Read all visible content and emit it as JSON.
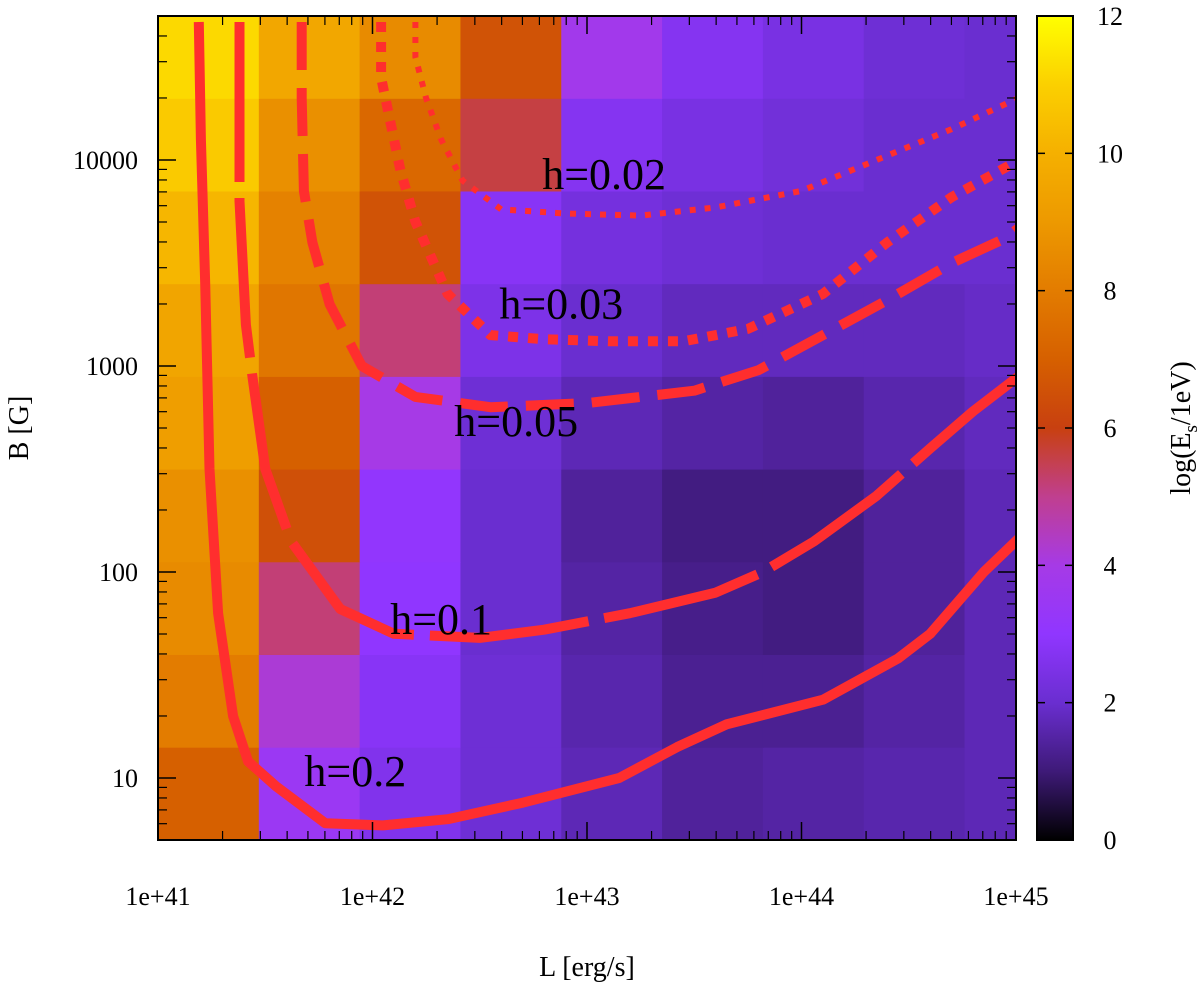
{
  "chart_data": {
    "type": "heatmap",
    "xlabel": "L [erg/s]",
    "ylabel": "B [G]",
    "xscale": "log",
    "yscale": "log",
    "xlim": [
      1e+41,
      1e+45
    ],
    "ylim": [
      5,
      50000
    ],
    "x_ticks": [
      {
        "value": 1e+41,
        "label": "1e+41"
      },
      {
        "value": 1e+42,
        "label": "1e+42"
      },
      {
        "value": 1e+43,
        "label": "1e+43"
      },
      {
        "value": 1e+44,
        "label": "1e+44"
      },
      {
        "value": 1e+45,
        "label": "1e+45"
      }
    ],
    "y_ticks": [
      {
        "value": 10,
        "label": "10"
      },
      {
        "value": 100,
        "label": "100"
      },
      {
        "value": 1000,
        "label": "1000"
      },
      {
        "value": 10000,
        "label": "10000"
      }
    ],
    "colorbar": {
      "label_main": "log(E",
      "label_sub": "s",
      "label_tail": "/1eV)",
      "min": 0,
      "max": 12,
      "ticks": [
        {
          "value": 0,
          "label": "0"
        },
        {
          "value": 2,
          "label": "2"
        },
        {
          "value": 4,
          "label": "4"
        },
        {
          "value": 6,
          "label": "6"
        },
        {
          "value": 8,
          "label": "8"
        },
        {
          "value": 10,
          "label": "10"
        },
        {
          "value": 12,
          "label": "12"
        }
      ],
      "stops": [
        {
          "v": 0,
          "color": "#000000"
        },
        {
          "v": 1,
          "color": "#3e1a78"
        },
        {
          "v": 2,
          "color": "#6a2ed0"
        },
        {
          "v": 3,
          "color": "#9036ff"
        },
        {
          "v": 4,
          "color": "#a63ae6"
        },
        {
          "v": 5,
          "color": "#c03f8f"
        },
        {
          "v": 6,
          "color": "#c84010"
        },
        {
          "v": 7,
          "color": "#d66000"
        },
        {
          "v": 8,
          "color": "#e37c00"
        },
        {
          "v": 9,
          "color": "#ed9900"
        },
        {
          "v": 10,
          "color": "#f5b000"
        },
        {
          "v": 11,
          "color": "#fbd000"
        },
        {
          "v": 12,
          "color": "#ffff00"
        }
      ]
    },
    "grid": {
      "log_x_edges": [
        41.0,
        41.47,
        41.94,
        42.41,
        42.88,
        43.35,
        43.82,
        44.29,
        44.76
      ],
      "log_y_edges": [
        0.7,
        1.15,
        1.6,
        2.05,
        2.5,
        2.95,
        3.4,
        3.85,
        4.3,
        4.7
      ],
      "rows_bottom_to_top": [
        [
          7.0,
          3.5,
          2.6,
          2.1,
          1.7,
          1.4,
          1.5,
          1.6,
          1.7
        ],
        [
          8.0,
          4.2,
          2.8,
          2.1,
          1.6,
          1.3,
          1.3,
          1.5,
          1.7
        ],
        [
          8.5,
          5.2,
          3.0,
          2.0,
          1.5,
          1.2,
          1.1,
          1.4,
          1.7
        ],
        [
          8.7,
          6.5,
          3.1,
          2.0,
          1.4,
          1.1,
          1.1,
          1.4,
          1.7
        ],
        [
          9.2,
          7.0,
          4.0,
          2.1,
          1.7,
          1.5,
          1.4,
          1.6,
          1.8
        ],
        [
          9.5,
          7.8,
          5.2,
          2.5,
          2.0,
          1.8,
          1.8,
          1.8,
          1.9
        ],
        [
          10.2,
          8.2,
          6.6,
          2.8,
          2.3,
          2.1,
          2.0,
          2.0,
          2.0
        ],
        [
          10.8,
          8.7,
          7.3,
          5.6,
          2.7,
          2.4,
          2.2,
          2.0,
          2.0
        ],
        [
          11.2,
          9.6,
          8.5,
          6.6,
          3.8,
          2.7,
          2.4,
          2.1,
          2.0
        ]
      ]
    },
    "contour_color": "#ff2e2e",
    "contours": [
      {
        "name": "h=0.2",
        "label": "h=0.2",
        "label_pos": [
          41.92,
          0.96
        ],
        "style": "solid",
        "points": [
          [
            41.19,
            4.67
          ],
          [
            41.2,
            4.1
          ],
          [
            41.22,
            3.4
          ],
          [
            41.24,
            2.5
          ],
          [
            41.28,
            1.8
          ],
          [
            41.35,
            1.3
          ],
          [
            41.42,
            1.08
          ],
          [
            41.55,
            0.96
          ],
          [
            41.78,
            0.78
          ],
          [
            42.05,
            0.77
          ],
          [
            42.35,
            0.8
          ],
          [
            42.7,
            0.88
          ],
          [
            43.15,
            1.0
          ],
          [
            43.42,
            1.15
          ],
          [
            43.65,
            1.26
          ],
          [
            44.1,
            1.38
          ],
          [
            44.45,
            1.58
          ],
          [
            44.6,
            1.7
          ],
          [
            44.85,
            2.0
          ],
          [
            45.05,
            2.2
          ]
        ]
      },
      {
        "name": "h=0.1",
        "label": "h=0.1",
        "label_pos": [
          42.32,
          1.7
        ],
        "style": "long-dash",
        "points": [
          [
            41.38,
            4.67
          ],
          [
            41.38,
            4.2
          ],
          [
            41.38,
            3.8
          ],
          [
            41.41,
            3.2
          ],
          [
            41.44,
            2.95
          ],
          [
            41.46,
            2.8
          ],
          [
            41.5,
            2.5
          ],
          [
            41.62,
            2.15
          ],
          [
            41.85,
            1.82
          ],
          [
            42.1,
            1.7
          ],
          [
            42.5,
            1.68
          ],
          [
            42.8,
            1.72
          ],
          [
            43.2,
            1.8
          ],
          [
            43.6,
            1.9
          ],
          [
            43.82,
            2.0
          ],
          [
            44.06,
            2.15
          ],
          [
            44.35,
            2.37
          ],
          [
            44.6,
            2.6
          ],
          [
            44.8,
            2.78
          ],
          [
            45.05,
            2.98
          ]
        ]
      },
      {
        "name": "h=0.05",
        "label": "h=0.05",
        "label_pos": [
          42.67,
          2.66
        ],
        "style": "dash",
        "points": [
          [
            41.67,
            4.67
          ],
          [
            41.67,
            4.3
          ],
          [
            41.68,
            3.85
          ],
          [
            41.72,
            3.6
          ],
          [
            41.8,
            3.3
          ],
          [
            41.95,
            3.0
          ],
          [
            42.2,
            2.85
          ],
          [
            42.55,
            2.8
          ],
          [
            43.0,
            2.82
          ],
          [
            43.5,
            2.88
          ],
          [
            43.8,
            2.98
          ],
          [
            44.1,
            3.15
          ],
          [
            44.4,
            3.32
          ],
          [
            44.7,
            3.5
          ],
          [
            44.95,
            3.62
          ],
          [
            45.05,
            3.7
          ]
        ]
      },
      {
        "name": "h=0.03",
        "label": "h=0.03",
        "label_pos": [
          42.88,
          3.23
        ],
        "style": "dotted-heavy",
        "points": [
          [
            42.04,
            4.67
          ],
          [
            42.04,
            4.4
          ],
          [
            42.08,
            4.2
          ],
          [
            42.13,
            3.95
          ],
          [
            42.2,
            3.7
          ],
          [
            42.35,
            3.35
          ],
          [
            42.55,
            3.15
          ],
          [
            42.8,
            3.13
          ],
          [
            43.1,
            3.12
          ],
          [
            43.45,
            3.12
          ],
          [
            43.75,
            3.18
          ],
          [
            44.1,
            3.35
          ],
          [
            44.4,
            3.6
          ],
          [
            44.7,
            3.82
          ],
          [
            45.05,
            4.02
          ]
        ]
      },
      {
        "name": "h=0.02",
        "label": "h=0.02",
        "label_pos": [
          43.08,
          3.86
        ],
        "style": "dotted-light",
        "points": [
          [
            42.2,
            4.67
          ],
          [
            42.2,
            4.5
          ],
          [
            42.25,
            4.3
          ],
          [
            42.32,
            4.1
          ],
          [
            42.42,
            3.9
          ],
          [
            42.6,
            3.76
          ],
          [
            42.9,
            3.74
          ],
          [
            43.25,
            3.73
          ],
          [
            43.6,
            3.77
          ],
          [
            44.0,
            3.85
          ],
          [
            44.35,
            4.0
          ],
          [
            44.7,
            4.15
          ],
          [
            45.05,
            4.32
          ]
        ]
      }
    ]
  }
}
